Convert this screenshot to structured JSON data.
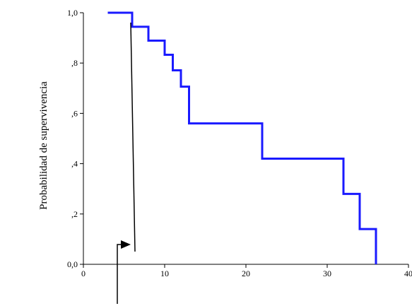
{
  "chart_data": {
    "type": "line",
    "ylabel": "Probabilidad de supervivencia",
    "xlabel": "",
    "xlim": [
      0,
      40
    ],
    "ylim": [
      0,
      1
    ],
    "x_ticks": [
      0,
      10,
      20,
      30,
      40
    ],
    "x_tick_labels": [
      "0",
      "10",
      "20",
      "30",
      "40"
    ],
    "y_ticks": [
      0,
      0.2,
      0.4,
      0.6,
      0.8,
      1.0
    ],
    "y_tick_labels": [
      "0,0",
      ",2",
      ",4",
      ",6",
      ",8",
      "1,0"
    ],
    "series": [
      {
        "color": "#1a1aff",
        "x": [
          3,
          6,
          8,
          10,
          11,
          12,
          13,
          22,
          32,
          34,
          36,
          36
        ],
        "y": [
          1.0,
          0.944,
          0.889,
          0.833,
          0.771,
          0.706,
          0.56,
          0.42,
          0.28,
          0.14,
          0.14,
          0.0
        ]
      }
    ],
    "grid": false,
    "legend": "none"
  },
  "annotations": {
    "color": "#000000"
  }
}
